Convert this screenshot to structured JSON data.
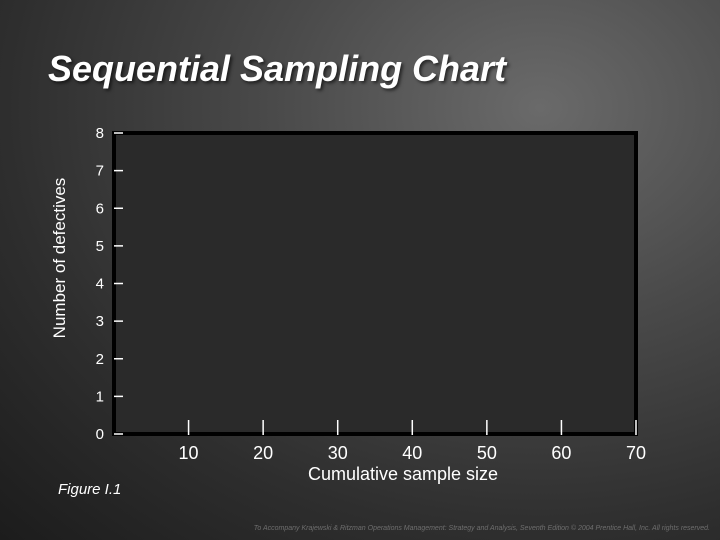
{
  "title": "Sequential Sampling Chart",
  "figure_label": "Figure I.1",
  "footer": "To Accompany Krajewski & Ritzman Operations Management: Strategy and Analysis, Seventh Edition © 2004 Prentice Hall, Inc. All rights reserved.",
  "colors": {
    "plot_background": "#2a2a2a",
    "plot_border": "#000000",
    "text": "#ffffff"
  },
  "chart_data": {
    "type": "line",
    "title": "Sequential Sampling Chart",
    "xlabel": "Cumulative sample size",
    "ylabel": "Number of defectives",
    "x_ticks": [
      "10",
      "20",
      "30",
      "40",
      "50",
      "60",
      "70"
    ],
    "y_ticks": [
      "0",
      "1",
      "2",
      "3",
      "4",
      "5",
      "6",
      "7",
      "8"
    ],
    "xlim": [
      0,
      70
    ],
    "ylim": [
      0,
      8
    ],
    "series": [],
    "grid": false
  }
}
